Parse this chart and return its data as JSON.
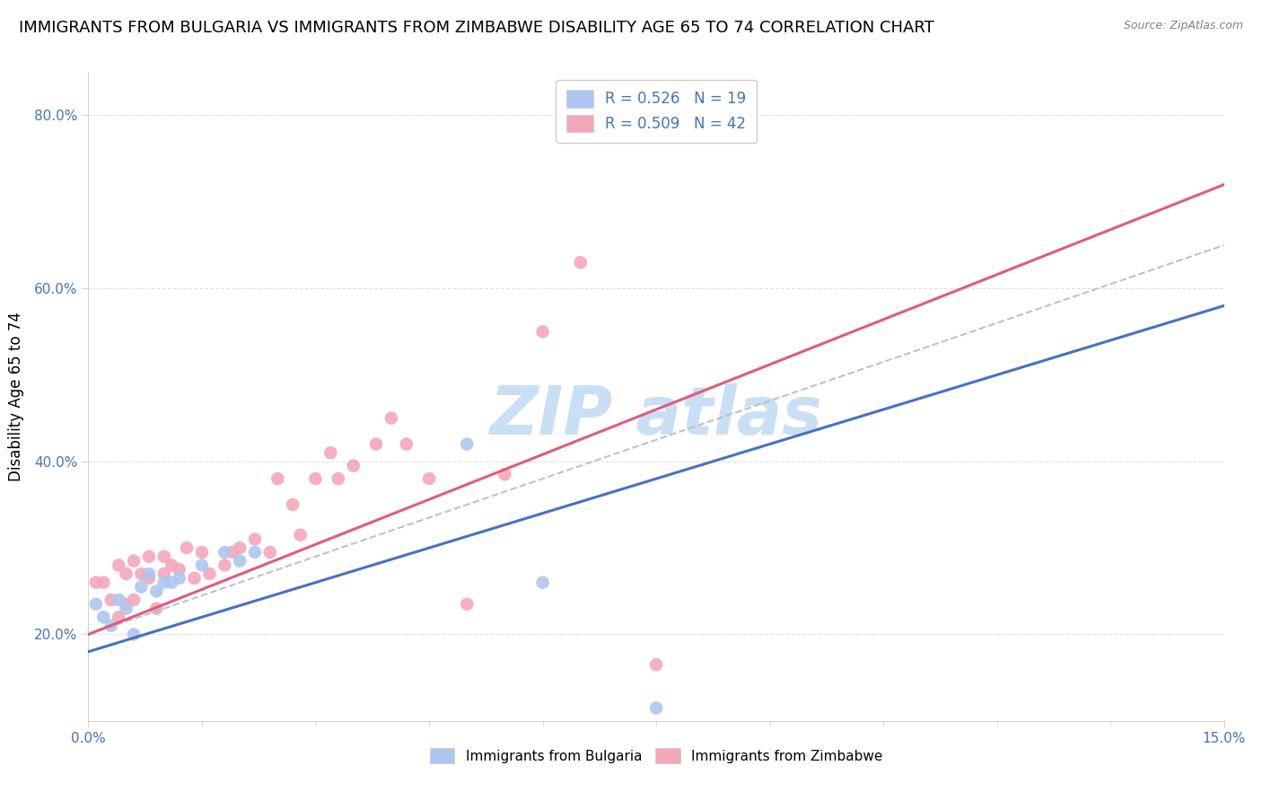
{
  "title": "IMMIGRANTS FROM BULGARIA VS IMMIGRANTS FROM ZIMBABWE DISABILITY AGE 65 TO 74 CORRELATION CHART",
  "source": "Source: ZipAtlas.com",
  "ylabel": "Disability Age 65 to 74",
  "xlim": [
    0.0,
    0.15
  ],
  "ylim": [
    0.1,
    0.85
  ],
  "ytick_labels": [
    "20.0%",
    "40.0%",
    "60.0%",
    "80.0%"
  ],
  "ytick_values": [
    0.2,
    0.4,
    0.6,
    0.8
  ],
  "legend_entries": [
    {
      "label": "R = 0.526   N = 19",
      "color": "#aec6ef"
    },
    {
      "label": "R = 0.509   N = 42",
      "color": "#f4a7b9"
    }
  ],
  "bulgaria_x": [
    0.001,
    0.002,
    0.003,
    0.004,
    0.005,
    0.006,
    0.007,
    0.008,
    0.009,
    0.01,
    0.011,
    0.012,
    0.015,
    0.018,
    0.02,
    0.022,
    0.05,
    0.06,
    0.075
  ],
  "bulgaria_y": [
    0.235,
    0.22,
    0.21,
    0.24,
    0.23,
    0.2,
    0.255,
    0.27,
    0.25,
    0.26,
    0.26,
    0.265,
    0.28,
    0.295,
    0.285,
    0.295,
    0.42,
    0.26,
    0.115
  ],
  "zimbabwe_x": [
    0.001,
    0.002,
    0.003,
    0.004,
    0.004,
    0.005,
    0.005,
    0.006,
    0.006,
    0.007,
    0.008,
    0.008,
    0.009,
    0.01,
    0.01,
    0.011,
    0.012,
    0.013,
    0.014,
    0.015,
    0.016,
    0.018,
    0.019,
    0.02,
    0.022,
    0.024,
    0.025,
    0.027,
    0.028,
    0.03,
    0.032,
    0.033,
    0.035,
    0.038,
    0.04,
    0.042,
    0.045,
    0.05,
    0.055,
    0.06,
    0.065,
    0.075
  ],
  "zimbabwe_y": [
    0.26,
    0.26,
    0.24,
    0.22,
    0.28,
    0.235,
    0.27,
    0.24,
    0.285,
    0.27,
    0.265,
    0.29,
    0.23,
    0.27,
    0.29,
    0.28,
    0.275,
    0.3,
    0.265,
    0.295,
    0.27,
    0.28,
    0.295,
    0.3,
    0.31,
    0.295,
    0.38,
    0.35,
    0.315,
    0.38,
    0.41,
    0.38,
    0.395,
    0.42,
    0.45,
    0.42,
    0.38,
    0.235,
    0.385,
    0.55,
    0.63,
    0.165
  ],
  "bulgaria_color": "#aec6ef",
  "zimbabwe_color": "#f4a7b9",
  "bulgaria_line_color": "#4472c4",
  "zimbabwe_line_color": "#e05c7a",
  "dash_line_color": "#a0b8d8",
  "background_color": "#ffffff",
  "title_fontsize": 13,
  "axis_label_fontsize": 12,
  "tick_fontsize": 11,
  "marker_size": 110,
  "watermark_color": "#c8dff5",
  "grid_color": "#e0e0e0"
}
